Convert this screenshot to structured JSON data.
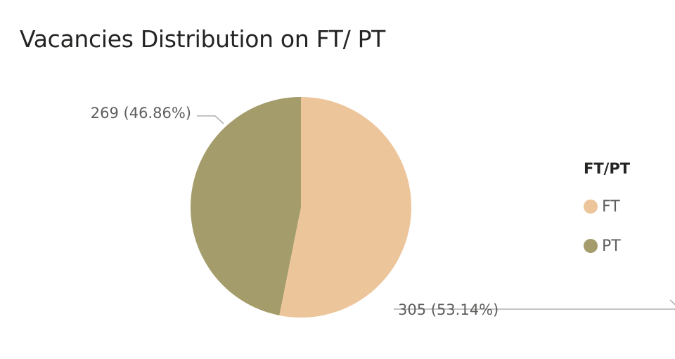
{
  "title": "Vacancies Distribution on FT/ PT",
  "chart_data": {
    "type": "pie",
    "title": "Vacancies Distribution on FT/ PT",
    "legend_title": "FT/PT",
    "legend_position": "right",
    "slices": [
      {
        "name": "FT",
        "value": 305,
        "percent": 53.14,
        "label": "305 (53.14%)",
        "color": "#EDC59B"
      },
      {
        "name": "PT",
        "value": 269,
        "percent": 46.86,
        "label": "269 (46.86%)",
        "color": "#A49C6A"
      }
    ]
  }
}
